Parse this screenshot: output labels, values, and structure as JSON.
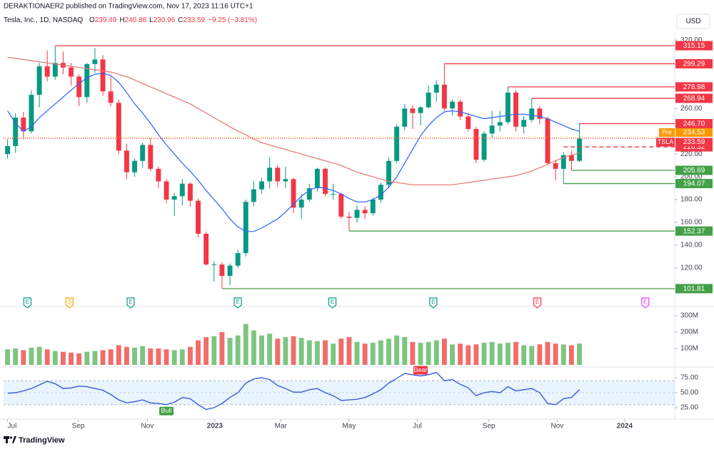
{
  "header": {
    "publisher": "DERAKTIONAER2 published on TradingView.com, Nov 17, 2023 11:16 UTC+1",
    "currency": "USD",
    "instrument": "Tesla, Inc., 1D, NASDAQ",
    "ohlc": [
      {
        "key": "O",
        "value": 239.49
      },
      {
        "key": "H",
        "value": 240.88
      },
      {
        "key": "L",
        "value": 230.96
      },
      {
        "key": "C",
        "value": 233.59
      }
    ],
    "change": "−9.25 (−3.81%)"
  },
  "footer": {
    "brand": "TradingView"
  },
  "chart_data": [
    {
      "type": "candlestick",
      "symbol": "TSLA",
      "up_color": "#089981",
      "down_color": "#f23645",
      "open": [
        220,
        227,
        252,
        240,
        272,
        297,
        288,
        300,
        296,
        288,
        270,
        299,
        303,
        275,
        265,
        223,
        204,
        214,
        228,
        207,
        196,
        180,
        183,
        194,
        179,
        150,
        123,
        123,
        113,
        122,
        133,
        178,
        189,
        196,
        208,
        196,
        198,
        173,
        180,
        190,
        207,
        185,
        185,
        165,
        164,
        171,
        168,
        180,
        193,
        214,
        244,
        260,
        256,
        261,
        274,
        281,
        260,
        266,
        253,
        242,
        215,
        238,
        245,
        248,
        274,
        244,
        250,
        260,
        251,
        212,
        207,
        219,
        214
      ],
      "high": [
        233,
        256,
        257,
        276,
        300,
        311,
        315.15,
        310,
        300,
        290,
        300,
        313,
        307,
        288,
        268,
        229,
        216,
        230,
        234,
        209,
        198,
        186,
        198,
        195,
        181,
        152,
        126,
        125,
        124,
        136,
        180,
        196,
        199,
        217,
        210,
        209,
        199,
        185,
        194,
        208,
        208,
        194,
        186,
        169,
        175,
        174,
        182,
        195,
        217,
        246,
        264,
        263,
        262,
        280,
        285,
        299.29,
        268,
        268,
        256,
        244,
        240,
        258,
        258,
        278.98,
        276,
        253,
        268.94,
        262,
        253,
        215,
        222,
        223,
        246.7
      ],
      "low": [
        216,
        221,
        233,
        238,
        261,
        284,
        285,
        290,
        280,
        262,
        265,
        291,
        271,
        262,
        220,
        198,
        200,
        208,
        205,
        190,
        177,
        166,
        175,
        174,
        147,
        122,
        108,
        101.81,
        105,
        120,
        130,
        174,
        185,
        190,
        191,
        190,
        168,
        163,
        178,
        187,
        183,
        180,
        163,
        152.37,
        160,
        163,
        166,
        177,
        190,
        212,
        241,
        242,
        245,
        260,
        266,
        258,
        254,
        250,
        240,
        212,
        213,
        235,
        240,
        246,
        240,
        238,
        248,
        246,
        210,
        197,
        194.07,
        205.69,
        213
      ],
      "close": [
        227,
        252,
        240,
        272,
        297,
        288,
        300,
        296,
        288,
        270,
        299,
        303,
        275,
        265,
        223,
        204,
        214,
        228,
        207,
        196,
        180,
        183,
        194,
        179,
        150,
        123,
        123,
        113,
        122,
        133,
        178,
        189,
        196,
        208,
        196,
        198,
        173,
        180,
        190,
        207,
        185,
        185,
        165,
        164,
        171,
        168,
        180,
        193,
        214,
        244,
        260,
        256,
        261,
        274,
        281,
        260,
        266,
        253,
        242,
        215,
        238,
        245,
        248,
        274,
        244,
        250,
        260,
        251,
        212,
        207,
        219,
        214,
        233.59
      ],
      "overlays": [
        {
          "color": "#2962ff",
          "values": [
            258,
            247,
            240,
            244,
            252,
            258,
            264,
            270,
            276,
            282,
            287,
            290,
            291,
            289,
            283,
            274,
            264,
            256,
            247,
            237,
            228,
            220,
            212,
            205,
            197,
            188,
            180,
            172,
            163,
            156,
            152,
            152,
            155,
            159,
            163,
            169,
            176,
            183,
            188,
            191,
            190,
            188,
            185,
            181,
            178,
            178,
            180,
            184,
            191,
            200,
            212,
            224,
            236,
            245,
            252,
            257,
            258,
            257,
            255,
            253,
            251,
            252,
            253,
            254,
            255,
            255,
            254,
            253,
            251,
            248,
            245,
            242,
            240
          ]
        },
        {
          "color": "#e57373",
          "values": [
            305,
            304,
            303,
            302,
            301,
            300,
            299,
            298,
            297,
            296,
            295,
            294,
            293,
            292,
            290,
            288,
            285,
            282,
            279,
            276,
            273,
            270,
            267,
            264,
            260,
            256,
            252,
            248,
            244,
            240,
            237,
            233,
            230,
            228,
            226,
            224,
            222,
            220,
            218,
            216,
            214,
            212,
            210,
            207,
            204,
            202,
            200,
            198,
            196,
            195,
            194,
            193,
            193,
            193,
            193,
            193,
            193,
            194,
            195,
            196,
            197,
            198,
            199,
            200,
            201,
            203,
            205,
            208,
            211,
            214,
            217,
            219,
            221
          ]
        }
      ],
      "premarket": {
        "name": "Pre",
        "value": 234.53,
        "color": "#ff9800"
      },
      "levels": [
        {
          "value": 315.15,
          "color": "#f23645"
        },
        {
          "value": 299.29,
          "color": "#f23645"
        },
        {
          "value": 278.98,
          "color": "#f23645"
        },
        {
          "value": 268.94,
          "color": "#f23645"
        },
        {
          "value": 246.7,
          "label": "246.70",
          "color": "#f23645"
        },
        {
          "value": 226.32,
          "color": "#f23645",
          "style": "dashed"
        },
        {
          "value": 205.69,
          "color": "#43a047"
        },
        {
          "value": 194.07,
          "color": "#43a047"
        },
        {
          "value": 152.37,
          "color": "#43a047"
        },
        {
          "value": 101.81,
          "color": "#43a047"
        }
      ],
      "events": [
        {
          "label": "E",
          "at": 2.5,
          "color": "#089981"
        },
        {
          "label": "S",
          "at": 7.8,
          "color": "#f7a600"
        },
        {
          "label": "E",
          "at": 15.5,
          "color": "#089981"
        },
        {
          "label": "E",
          "at": 29,
          "color": "#089981"
        },
        {
          "label": "E",
          "at": 40.9,
          "color": "#089981"
        },
        {
          "label": "E",
          "at": 53.6,
          "color": "#089981"
        },
        {
          "label": "E",
          "at": 66.7,
          "color": "#f23645"
        },
        {
          "label": "E",
          "at": 80.3,
          "color": "#e040fb"
        }
      ],
      "ylim": [
        95.55,
        327.1
      ],
      "yticks": [
        {
          "value": 320,
          "label": "320.00"
        },
        {
          "value": 260,
          "label": "260.00"
        },
        {
          "value": 220,
          "label": "220.00"
        },
        {
          "value": 200,
          "label": "200.00"
        },
        {
          "value": 180,
          "label": "180.00"
        },
        {
          "value": 160,
          "label": "160.00"
        },
        {
          "value": 140,
          "label": "140.00"
        },
        {
          "value": 120,
          "label": "120.00"
        }
      ],
      "xlim": [
        -0.5,
        84
      ],
      "xticks": [
        {
          "value": 0,
          "label": "Jul"
        },
        {
          "value": 8.9,
          "label": "Sep"
        },
        {
          "value": 17.6,
          "label": "Nov"
        },
        {
          "value": 26.1,
          "label": "2023"
        },
        {
          "value": 34.4,
          "label": "Mar"
        },
        {
          "value": 43,
          "label": "May"
        },
        {
          "value": 51.6,
          "label": "Jul"
        },
        {
          "value": 60.6,
          "label": "Sep"
        },
        {
          "value": 69.2,
          "label": "Nov"
        },
        {
          "value": 77.7,
          "label": "2024"
        }
      ]
    },
    {
      "type": "bar",
      "up_color": "#66bb6a",
      "down_color": "#ef5350",
      "values": [
        95,
        100,
        90,
        105,
        110,
        95,
        85,
        80,
        75,
        70,
        80,
        85,
        90,
        95,
        120,
        110,
        105,
        115,
        100,
        100,
        95,
        90,
        95,
        110,
        150,
        170,
        175,
        200,
        165,
        180,
        250,
        210,
        180,
        190,
        160,
        170,
        175,
        165,
        150,
        145,
        150,
        130,
        160,
        170,
        140,
        130,
        135,
        150,
        160,
        180,
        170,
        140,
        135,
        140,
        150,
        160,
        125,
        130,
        120,
        125,
        135,
        140,
        130,
        135,
        140,
        120,
        115,
        125,
        140,
        130,
        125,
        120,
        130
      ],
      "ylim": [
        0,
        335
      ],
      "yticks": [
        {
          "value": 300,
          "label": "300M"
        },
        {
          "value": 200,
          "label": "200M"
        },
        {
          "value": 100,
          "label": "100M"
        }
      ]
    },
    {
      "type": "line",
      "color": "#3a5bd9",
      "band": [
        30,
        70
      ],
      "midline": 50,
      "values": [
        49,
        50,
        53,
        57,
        63,
        69,
        65,
        57,
        58,
        61,
        60,
        57,
        54,
        47,
        38,
        33,
        35,
        38,
        33,
        32,
        30,
        34,
        42,
        40,
        30,
        22,
        25,
        32,
        42,
        50,
        66,
        73,
        75,
        72,
        62,
        57,
        51,
        51,
        55,
        57,
        50,
        45,
        37,
        38,
        39,
        42,
        48,
        55,
        66,
        74,
        82,
        80,
        78,
        80,
        84,
        70,
        72,
        64,
        58,
        45,
        50,
        52,
        50,
        60,
        53,
        55,
        57,
        50,
        32,
        30,
        40,
        42,
        55
      ],
      "signals": [
        {
          "label": "Bull",
          "at": 20,
          "color": "#43a047"
        },
        {
          "label": "Bear",
          "at": 52,
          "color": "#f23645"
        }
      ],
      "ylim": [
        9.5,
        89.3
      ],
      "yticks": [
        {
          "value": 75,
          "label": "75.00"
        },
        {
          "value": 50,
          "label": "50.00"
        },
        {
          "value": 25,
          "label": "25.00"
        }
      ]
    }
  ]
}
